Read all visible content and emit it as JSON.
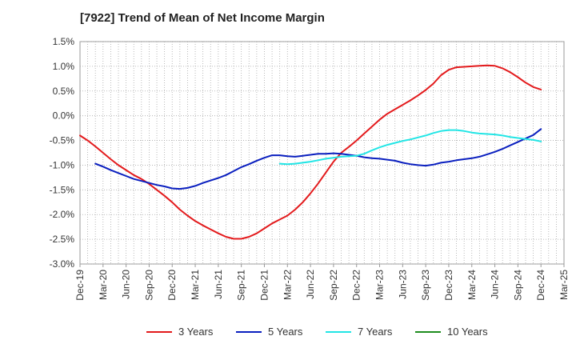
{
  "chart_data": {
    "type": "line",
    "title": "[7922]  Trend of Mean of Net Income Margin",
    "xlabel": "",
    "ylabel": "",
    "x_ticks": [
      "Dec-19",
      "Mar-20",
      "Jun-20",
      "Sep-20",
      "Dec-20",
      "Mar-21",
      "Jun-21",
      "Sep-21",
      "Dec-21",
      "Mar-22",
      "Jun-22",
      "Sep-22",
      "Dec-22",
      "Mar-23",
      "Jun-23",
      "Sep-23",
      "Dec-23",
      "Mar-24",
      "Jun-24",
      "Sep-24",
      "Dec-24",
      "Mar-25"
    ],
    "y_ticks": [
      "1.5%",
      "1.0%",
      "0.5%",
      "0.0%",
      "-0.5%",
      "-1.0%",
      "-1.5%",
      "-2.0%",
      "-2.5%",
      "-3.0%"
    ],
    "y_tick_values": [
      1.5,
      1.0,
      0.5,
      0.0,
      -0.5,
      -1.0,
      -1.5,
      -2.0,
      -2.5,
      -3.0
    ],
    "ylim": [
      -3.0,
      1.5
    ],
    "grid": true,
    "legend_position": "bottom",
    "series": [
      {
        "name": "3 Years",
        "color": "#e31a1c",
        "points": [
          [
            "Dec-19",
            -0.4
          ],
          [
            "Jan-20",
            -0.5
          ],
          [
            "Feb-20",
            -0.62
          ],
          [
            "Mar-20",
            -0.75
          ],
          [
            "Apr-20",
            -0.88
          ],
          [
            "May-20",
            -1.0
          ],
          [
            "Jun-20",
            -1.1
          ],
          [
            "Jul-20",
            -1.2
          ],
          [
            "Aug-20",
            -1.28
          ],
          [
            "Sep-20",
            -1.38
          ],
          [
            "Oct-20",
            -1.5
          ],
          [
            "Nov-20",
            -1.62
          ],
          [
            "Dec-20",
            -1.75
          ],
          [
            "Jan-21",
            -1.9
          ],
          [
            "Feb-21",
            -2.02
          ],
          [
            "Mar-21",
            -2.13
          ],
          [
            "Apr-21",
            -2.22
          ],
          [
            "May-21",
            -2.3
          ],
          [
            "Jun-21",
            -2.38
          ],
          [
            "Jul-21",
            -2.45
          ],
          [
            "Aug-21",
            -2.49
          ],
          [
            "Sep-21",
            -2.49
          ],
          [
            "Oct-21",
            -2.45
          ],
          [
            "Nov-21",
            -2.38
          ],
          [
            "Dec-21",
            -2.28
          ],
          [
            "Jan-22",
            -2.18
          ],
          [
            "Feb-22",
            -2.1
          ],
          [
            "Mar-22",
            -2.02
          ],
          [
            "Apr-22",
            -1.9
          ],
          [
            "May-22",
            -1.75
          ],
          [
            "Jun-22",
            -1.57
          ],
          [
            "Jul-22",
            -1.37
          ],
          [
            "Aug-22",
            -1.15
          ],
          [
            "Sep-22",
            -0.93
          ],
          [
            "Oct-22",
            -0.75
          ],
          [
            "Nov-22",
            -0.63
          ],
          [
            "Dec-22",
            -0.5
          ],
          [
            "Jan-23",
            -0.36
          ],
          [
            "Feb-23",
            -0.22
          ],
          [
            "Mar-23",
            -0.08
          ],
          [
            "Apr-23",
            0.04
          ],
          [
            "May-23",
            0.13
          ],
          [
            "Jun-23",
            0.22
          ],
          [
            "Jul-23",
            0.31
          ],
          [
            "Aug-23",
            0.41
          ],
          [
            "Sep-23",
            0.52
          ],
          [
            "Oct-23",
            0.65
          ],
          [
            "Nov-23",
            0.82
          ],
          [
            "Dec-23",
            0.93
          ],
          [
            "Jan-24",
            0.98
          ],
          [
            "Feb-24",
            0.99
          ],
          [
            "Mar-24",
            1.0
          ],
          [
            "Apr-24",
            1.01
          ],
          [
            "May-24",
            1.02
          ],
          [
            "Jun-24",
            1.01
          ],
          [
            "Jul-24",
            0.96
          ],
          [
            "Aug-24",
            0.88
          ],
          [
            "Sep-24",
            0.78
          ],
          [
            "Oct-24",
            0.67
          ],
          [
            "Nov-24",
            0.58
          ],
          [
            "Dec-24",
            0.53
          ]
        ]
      },
      {
        "name": "5 Years",
        "color": "#0a1fbf",
        "points": [
          [
            "Feb-20",
            -0.97
          ],
          [
            "Mar-20",
            -1.03
          ],
          [
            "Apr-20",
            -1.1
          ],
          [
            "May-20",
            -1.16
          ],
          [
            "Jun-20",
            -1.22
          ],
          [
            "Jul-20",
            -1.28
          ],
          [
            "Aug-20",
            -1.32
          ],
          [
            "Sep-20",
            -1.36
          ],
          [
            "Oct-20",
            -1.4
          ],
          [
            "Nov-20",
            -1.43
          ],
          [
            "Dec-20",
            -1.47
          ],
          [
            "Jan-21",
            -1.48
          ],
          [
            "Feb-21",
            -1.46
          ],
          [
            "Mar-21",
            -1.42
          ],
          [
            "Apr-21",
            -1.36
          ],
          [
            "May-21",
            -1.31
          ],
          [
            "Jun-21",
            -1.26
          ],
          [
            "Jul-21",
            -1.2
          ],
          [
            "Aug-21",
            -1.12
          ],
          [
            "Sep-21",
            -1.04
          ],
          [
            "Oct-21",
            -0.98
          ],
          [
            "Nov-21",
            -0.91
          ],
          [
            "Dec-21",
            -0.85
          ],
          [
            "Jan-22",
            -0.8
          ],
          [
            "Feb-22",
            -0.8
          ],
          [
            "Mar-22",
            -0.82
          ],
          [
            "Apr-22",
            -0.83
          ],
          [
            "May-22",
            -0.81
          ],
          [
            "Jun-22",
            -0.79
          ],
          [
            "Jul-22",
            -0.77
          ],
          [
            "Aug-22",
            -0.77
          ],
          [
            "Sep-22",
            -0.76
          ],
          [
            "Oct-22",
            -0.77
          ],
          [
            "Nov-22",
            -0.79
          ],
          [
            "Dec-22",
            -0.81
          ],
          [
            "Jan-23",
            -0.84
          ],
          [
            "Feb-23",
            -0.86
          ],
          [
            "Mar-23",
            -0.87
          ],
          [
            "Apr-23",
            -0.89
          ],
          [
            "May-23",
            -0.91
          ],
          [
            "Jun-23",
            -0.95
          ],
          [
            "Jul-23",
            -0.98
          ],
          [
            "Aug-23",
            -1.0
          ],
          [
            "Sep-23",
            -1.01
          ],
          [
            "Oct-23",
            -0.99
          ],
          [
            "Nov-23",
            -0.95
          ],
          [
            "Dec-23",
            -0.93
          ],
          [
            "Jan-24",
            -0.9
          ],
          [
            "Feb-24",
            -0.88
          ],
          [
            "Mar-24",
            -0.86
          ],
          [
            "Apr-24",
            -0.83
          ],
          [
            "May-24",
            -0.78
          ],
          [
            "Jun-24",
            -0.73
          ],
          [
            "Jul-24",
            -0.67
          ],
          [
            "Aug-24",
            -0.6
          ],
          [
            "Sep-24",
            -0.53
          ],
          [
            "Oct-24",
            -0.46
          ],
          [
            "Nov-24",
            -0.39
          ],
          [
            "Dec-24",
            -0.27
          ]
        ]
      },
      {
        "name": "7 Years",
        "color": "#22e5e5",
        "points": [
          [
            "Feb-22",
            -0.97
          ],
          [
            "Mar-22",
            -0.98
          ],
          [
            "Apr-22",
            -0.97
          ],
          [
            "May-22",
            -0.95
          ],
          [
            "Jun-22",
            -0.93
          ],
          [
            "Jul-22",
            -0.9
          ],
          [
            "Aug-22",
            -0.87
          ],
          [
            "Sep-22",
            -0.85
          ],
          [
            "Oct-22",
            -0.83
          ],
          [
            "Nov-22",
            -0.82
          ],
          [
            "Dec-22",
            -0.81
          ],
          [
            "Jan-23",
            -0.77
          ],
          [
            "Feb-23",
            -0.7
          ],
          [
            "Mar-23",
            -0.64
          ],
          [
            "Apr-23",
            -0.59
          ],
          [
            "May-23",
            -0.55
          ],
          [
            "Jun-23",
            -0.51
          ],
          [
            "Jul-23",
            -0.48
          ],
          [
            "Aug-23",
            -0.44
          ],
          [
            "Sep-23",
            -0.4
          ],
          [
            "Oct-23",
            -0.35
          ],
          [
            "Nov-23",
            -0.31
          ],
          [
            "Dec-23",
            -0.29
          ],
          [
            "Jan-24",
            -0.29
          ],
          [
            "Feb-24",
            -0.31
          ],
          [
            "Mar-24",
            -0.34
          ],
          [
            "Apr-24",
            -0.36
          ],
          [
            "May-24",
            -0.37
          ],
          [
            "Jun-24",
            -0.38
          ],
          [
            "Jul-24",
            -0.4
          ],
          [
            "Aug-24",
            -0.43
          ],
          [
            "Sep-24",
            -0.45
          ],
          [
            "Oct-24",
            -0.47
          ],
          [
            "Nov-24",
            -0.49
          ],
          [
            "Dec-24",
            -0.52
          ]
        ]
      },
      {
        "name": "10 Years",
        "color": "#1e8c1e",
        "points": []
      }
    ]
  }
}
